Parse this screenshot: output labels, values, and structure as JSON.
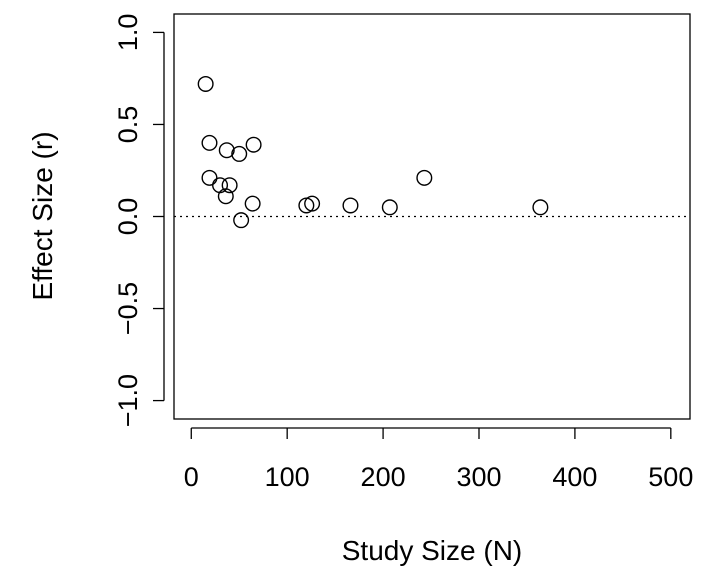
{
  "chart_data": {
    "type": "scatter",
    "title": "",
    "xlabel": "Study Size (N)",
    "ylabel": "Effect Size (r)",
    "xlim": [
      -18,
      520
    ],
    "ylim": [
      -1.1,
      1.1
    ],
    "x_ticks": [
      {
        "value": 0,
        "label": "0"
      },
      {
        "value": 100,
        "label": "100"
      },
      {
        "value": 200,
        "label": "200"
      },
      {
        "value": 300,
        "label": "300"
      },
      {
        "value": 400,
        "label": "400"
      },
      {
        "value": 500,
        "label": "500"
      }
    ],
    "y_ticks": [
      {
        "value": -1.0,
        "label": "−1.0"
      },
      {
        "value": -0.5,
        "label": "−0.5"
      },
      {
        "value": 0.0,
        "label": "0.0"
      },
      {
        "value": 0.5,
        "label": "0.5"
      },
      {
        "value": 1.0,
        "label": "1.0"
      }
    ],
    "reference_line": {
      "y": 0,
      "style": "dotted"
    },
    "grid": false,
    "legend": "none",
    "marker": "open-circle",
    "points": [
      {
        "x": 15,
        "y": 0.72
      },
      {
        "x": 19,
        "y": 0.4
      },
      {
        "x": 19,
        "y": 0.21
      },
      {
        "x": 30,
        "y": 0.17
      },
      {
        "x": 37,
        "y": 0.36
      },
      {
        "x": 36,
        "y": 0.11
      },
      {
        "x": 40,
        "y": 0.17
      },
      {
        "x": 50,
        "y": 0.34
      },
      {
        "x": 52,
        "y": -0.02
      },
      {
        "x": 64,
        "y": 0.07
      },
      {
        "x": 65,
        "y": 0.39
      },
      {
        "x": 120,
        "y": 0.06
      },
      {
        "x": 126,
        "y": 0.07
      },
      {
        "x": 166,
        "y": 0.06
      },
      {
        "x": 207,
        "y": 0.05
      },
      {
        "x": 243,
        "y": 0.21
      },
      {
        "x": 364,
        "y": 0.05
      }
    ]
  }
}
